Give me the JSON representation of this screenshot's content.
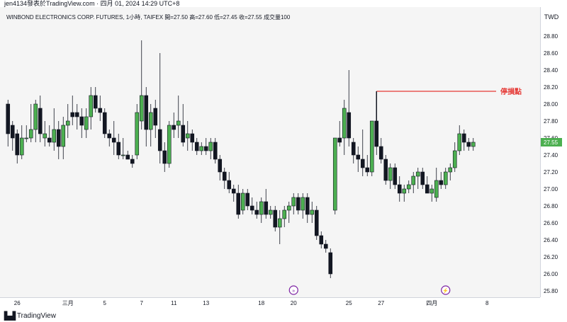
{
  "header": {
    "publish_line": "jen4134發表於TradingView.com · 四月 01, 2024 14:29 UTC+8"
  },
  "legend": {
    "text": "WINBOND ELECTRONICS CORP. FUTURES, 1小時, TAIFEX  開=27.50  高=27.60  低=27.45  收=27.55  成交量100"
  },
  "currency_label": "TWD",
  "brand": {
    "name": "TradingView"
  },
  "annotation": {
    "label": "停損點",
    "price": 28.15
  },
  "colors": {
    "up": "#4caf50",
    "down": "#131722",
    "stop_line": "#e53935",
    "last_price_bg": "#4caf50",
    "background": "#f5f5f5"
  },
  "chart_data": {
    "type": "candlestick",
    "title": "WINBOND ELECTRONICS CORP. FUTURES, 1小時, TAIFEX",
    "ylim": [
      25.7,
      29.0
    ],
    "yticks": [
      "28.80",
      "28.60",
      "28.40",
      "28.20",
      "28.00",
      "27.80",
      "27.60",
      "27.40",
      "27.20",
      "27.00",
      "26.80",
      "26.60",
      "26.40",
      "26.20",
      "26.00",
      "25.80"
    ],
    "last_price": "27.55",
    "xticks": [
      {
        "label": "26",
        "index": 2
      },
      {
        "label": "三月",
        "index": 13
      },
      {
        "label": "5",
        "index": 21
      },
      {
        "label": "7",
        "index": 29
      },
      {
        "label": "11",
        "index": 36
      },
      {
        "label": "13",
        "index": 43
      },
      {
        "label": "18",
        "index": 55
      },
      {
        "label": "20",
        "index": 62
      },
      {
        "label": "25",
        "index": 74
      },
      {
        "label": "27",
        "index": 81
      },
      {
        "label": "四月",
        "index": 92
      },
      {
        "label": "8",
        "index": 104
      }
    ],
    "candles": [
      [
        28.0,
        28.05,
        27.5,
        27.65
      ],
      [
        27.75,
        27.8,
        27.45,
        27.6
      ],
      [
        27.65,
        27.7,
        27.3,
        27.4
      ],
      [
        27.4,
        27.75,
        27.35,
        27.6
      ],
      [
        27.6,
        27.75,
        27.55,
        27.6
      ],
      [
        27.6,
        28.0,
        27.55,
        27.7
      ],
      [
        27.7,
        28.05,
        27.55,
        28.0
      ],
      [
        27.95,
        28.1,
        27.55,
        27.65
      ],
      [
        27.6,
        27.8,
        27.5,
        27.65
      ],
      [
        27.6,
        27.75,
        27.5,
        27.55
      ],
      [
        27.55,
        27.95,
        27.45,
        27.7
      ],
      [
        27.7,
        27.8,
        27.35,
        27.5
      ],
      [
        27.5,
        27.85,
        27.35,
        27.75
      ],
      [
        27.75,
        28.0,
        27.6,
        27.8
      ],
      [
        27.9,
        28.1,
        27.75,
        27.85
      ],
      [
        27.9,
        28.0,
        27.7,
        27.85
      ],
      [
        27.85,
        27.95,
        27.6,
        27.75
      ],
      [
        27.7,
        27.95,
        27.6,
        27.85
      ],
      [
        27.85,
        28.2,
        27.7,
        28.1
      ],
      [
        28.1,
        28.2,
        27.9,
        27.95
      ],
      [
        27.95,
        28.1,
        27.8,
        27.9
      ],
      [
        27.9,
        27.95,
        27.6,
        27.65
      ],
      [
        27.65,
        27.7,
        27.5,
        27.6
      ],
      [
        27.6,
        27.8,
        27.4,
        27.55
      ],
      [
        27.55,
        27.65,
        27.35,
        27.4
      ],
      [
        27.4,
        27.6,
        27.35,
        27.4
      ],
      [
        27.4,
        27.45,
        27.35,
        27.35
      ],
      [
        27.35,
        27.4,
        27.25,
        27.3
      ],
      [
        27.4,
        28.0,
        27.35,
        27.9
      ],
      [
        27.8,
        28.75,
        27.7,
        28.1
      ],
      [
        28.1,
        28.2,
        27.5,
        27.7
      ],
      [
        27.7,
        28.0,
        27.5,
        27.9
      ],
      [
        27.95,
        28.05,
        27.6,
        27.75
      ],
      [
        27.7,
        28.6,
        27.3,
        27.45
      ],
      [
        27.45,
        27.55,
        27.2,
        27.3
      ],
      [
        27.3,
        27.8,
        27.25,
        27.75
      ],
      [
        27.75,
        27.9,
        27.6,
        27.7
      ],
      [
        27.75,
        28.1,
        27.6,
        27.8
      ],
      [
        27.75,
        28.0,
        27.5,
        27.55
      ],
      [
        27.6,
        27.8,
        27.45,
        27.65
      ],
      [
        27.65,
        27.7,
        27.45,
        27.55
      ],
      [
        27.55,
        27.6,
        27.4,
        27.45
      ],
      [
        27.45,
        27.55,
        27.4,
        27.5
      ],
      [
        27.5,
        27.6,
        27.4,
        27.45
      ],
      [
        27.45,
        27.6,
        27.35,
        27.55
      ],
      [
        27.55,
        27.6,
        27.3,
        27.35
      ],
      [
        27.35,
        27.4,
        27.1,
        27.2
      ],
      [
        27.2,
        27.25,
        27.0,
        27.1
      ],
      [
        27.1,
        27.2,
        26.95,
        27.0
      ],
      [
        27.0,
        27.05,
        26.85,
        26.95
      ],
      [
        26.95,
        27.05,
        26.65,
        26.7
      ],
      [
        26.75,
        27.0,
        26.7,
        26.95
      ],
      [
        26.95,
        27.0,
        26.75,
        26.8
      ],
      [
        26.8,
        26.9,
        26.7,
        26.75
      ],
      [
        26.75,
        26.85,
        26.65,
        26.7
      ],
      [
        26.7,
        26.9,
        26.6,
        26.85
      ],
      [
        26.85,
        27.0,
        26.65,
        26.7
      ],
      [
        26.7,
        26.8,
        26.65,
        26.75
      ],
      [
        26.75,
        26.8,
        26.5,
        26.55
      ],
      [
        26.55,
        26.75,
        26.35,
        26.65
      ],
      [
        26.65,
        26.8,
        26.55,
        26.75
      ],
      [
        26.75,
        26.85,
        26.6,
        26.8
      ],
      [
        26.8,
        26.95,
        26.7,
        26.9
      ],
      [
        26.9,
        26.95,
        26.7,
        26.75
      ],
      [
        26.75,
        26.95,
        26.65,
        26.9
      ],
      [
        26.9,
        26.95,
        26.6,
        26.7
      ],
      [
        26.7,
        26.85,
        26.6,
        26.75
      ],
      [
        26.75,
        26.8,
        26.4,
        26.45
      ],
      [
        26.45,
        26.5,
        26.3,
        26.35
      ],
      [
        26.35,
        26.4,
        26.25,
        26.3
      ],
      [
        26.25,
        26.3,
        25.95,
        26.0
      ],
      [
        26.75,
        27.6,
        26.7,
        27.6
      ],
      [
        27.6,
        27.8,
        27.5,
        27.55
      ],
      [
        27.6,
        28.05,
        27.4,
        27.95
      ],
      [
        27.9,
        28.4,
        27.5,
        27.6
      ],
      [
        27.55,
        27.6,
        27.3,
        27.4
      ],
      [
        27.4,
        27.5,
        27.2,
        27.35
      ],
      [
        27.35,
        27.7,
        27.15,
        27.25
      ],
      [
        27.25,
        27.4,
        27.15,
        27.2
      ],
      [
        27.2,
        27.8,
        27.15,
        27.8
      ],
      [
        27.8,
        28.15,
        27.4,
        27.5
      ],
      [
        27.5,
        27.6,
        27.3,
        27.35
      ],
      [
        27.35,
        27.4,
        27.05,
        27.1
      ],
      [
        27.1,
        27.3,
        27.0,
        27.25
      ],
      [
        27.25,
        27.3,
        27.0,
        27.05
      ],
      [
        27.05,
        27.15,
        26.85,
        26.95
      ],
      [
        26.95,
        27.05,
        26.85,
        27.0
      ],
      [
        27.0,
        27.1,
        26.95,
        27.05
      ],
      [
        27.05,
        27.2,
        26.95,
        27.15
      ],
      [
        27.15,
        27.25,
        27.0,
        27.2
      ],
      [
        27.2,
        27.25,
        27.0,
        27.05
      ],
      [
        27.05,
        27.15,
        26.95,
        26.95
      ],
      [
        26.95,
        27.05,
        26.85,
        27.0
      ],
      [
        26.9,
        27.25,
        26.85,
        27.1
      ],
      [
        27.1,
        27.2,
        27.0,
        27.05
      ],
      [
        27.05,
        27.25,
        27.0,
        27.2
      ],
      [
        27.2,
        27.3,
        27.1,
        27.25
      ],
      [
        27.25,
        27.55,
        27.2,
        27.45
      ],
      [
        27.45,
        27.75,
        27.4,
        27.65
      ],
      [
        27.65,
        27.7,
        27.45,
        27.55
      ],
      [
        27.55,
        27.6,
        27.45,
        27.5
      ],
      [
        27.5,
        27.6,
        27.45,
        27.55
      ]
    ],
    "event_markers": [
      {
        "index": 62,
        "kind": "split"
      },
      {
        "index": 95,
        "kind": "dividend"
      }
    ]
  }
}
